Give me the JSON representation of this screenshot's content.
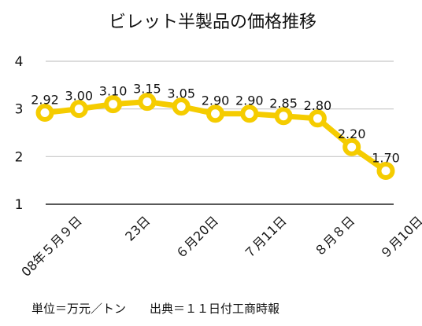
{
  "chart_data": {
    "type": "line",
    "title": "ビレット半製品の価格推移",
    "categories": [
      "08年５月９日",
      "",
      "23日",
      "",
      "６月20日",
      "",
      "７月11日",
      "",
      "８月８日",
      "",
      "９月10日"
    ],
    "series": [
      {
        "values": [
          2.92,
          3.0,
          3.1,
          3.15,
          3.05,
          2.9,
          2.9,
          2.85,
          2.8,
          2.2,
          1.7
        ],
        "labels": [
          "2.92",
          "3.00",
          "3.10",
          "3.15",
          "3.05",
          "2.90",
          "2.90",
          "2.85",
          "2.80",
          "2.20",
          "1.70"
        ],
        "color": "#f5cc00"
      }
    ],
    "yticks": [
      "1",
      "2",
      "3",
      "4"
    ],
    "ylim": [
      1,
      4
    ],
    "grid": true,
    "footnote": "単位＝万元／トン　　出典＝１１日付工商時報"
  }
}
